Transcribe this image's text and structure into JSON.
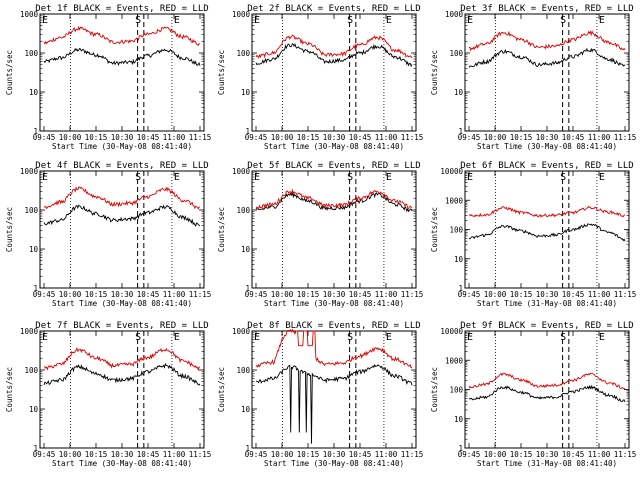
{
  "chart_data": [
    {
      "type": "line",
      "title": "Det 1f BLACK = Events, RED = LLD",
      "xlabel": "Start Time (30-May-08 08:41:40)",
      "ylabel": "Counts/sec",
      "ylim": [
        1,
        1000
      ],
      "y_log": true,
      "x_ticks": [
        "09:45",
        "10:00",
        "10:15",
        "10:30",
        "10:45",
        "11:00",
        "11:15"
      ],
      "y_ticks": [
        "1",
        "10",
        "100",
        "1000"
      ],
      "markers": {
        "E1": "E",
        "S": "S",
        "E2": "E"
      },
      "series": [
        {
          "name": "Events",
          "color": "#000000",
          "values": [
            60,
            75,
            120,
            90,
            55,
            58,
            85,
            120,
            75,
            50
          ]
        },
        {
          "name": "LLD",
          "color": "#e00000",
          "values": [
            180,
            250,
            420,
            300,
            190,
            200,
            300,
            420,
            260,
            170
          ]
        }
      ]
    },
    {
      "type": "line",
      "title": "Det 2f BLACK = Events, RED = LLD",
      "xlabel": "Start Time (30-May-08 08:41:40)",
      "ylabel": "Counts/sec",
      "ylim": [
        1,
        1000
      ],
      "y_log": true,
      "x_ticks": [
        "09:45",
        "10:00",
        "10:15",
        "10:30",
        "10:45",
        "11:00",
        "11:15"
      ],
      "y_ticks": [
        "1",
        "10",
        "100",
        "1000"
      ],
      "markers": {
        "E1": "E",
        "S": "S",
        "E2": "E"
      },
      "series": [
        {
          "name": "Events",
          "color": "#000000",
          "values": [
            55,
            70,
            160,
            110,
            60,
            65,
            100,
            150,
            80,
            50
          ]
        },
        {
          "name": "LLD",
          "color": "#e00000",
          "values": [
            80,
            100,
            260,
            170,
            90,
            95,
            160,
            250,
            120,
            80
          ]
        }
      ]
    },
    {
      "type": "line",
      "title": "Det 3f BLACK = Events, RED = LLD",
      "xlabel": "Start Time (30-May-08 08:41:40)",
      "ylabel": "Counts/sec",
      "ylim": [
        1,
        1000
      ],
      "y_log": true,
      "x_ticks": [
        "09:45",
        "10:00",
        "10:15",
        "10:30",
        "10:45",
        "11:00",
        "11:15"
      ],
      "y_ticks": [
        "1",
        "10",
        "100",
        "1000"
      ],
      "markers": {
        "E1": "E",
        "S": "S",
        "E2": "E"
      },
      "series": [
        {
          "name": "Events",
          "color": "#000000",
          "values": [
            45,
            60,
            110,
            80,
            50,
            55,
            80,
            120,
            70,
            45
          ]
        },
        {
          "name": "LLD",
          "color": "#e00000",
          "values": [
            130,
            170,
            330,
            220,
            140,
            150,
            220,
            330,
            190,
            120
          ]
        }
      ]
    },
    {
      "type": "line",
      "title": "Det 4f BLACK = Events, RED = LLD",
      "xlabel": "Start Time (30-May-08 08:41:40)",
      "ylabel": "Counts/sec",
      "ylim": [
        1,
        1000
      ],
      "y_log": true,
      "x_ticks": [
        "09:45",
        "10:00",
        "10:15",
        "10:30",
        "10:45",
        "11:00",
        "11:15"
      ],
      "y_ticks": [
        "1",
        "10",
        "100",
        "1000"
      ],
      "markers": {
        "E1": "E",
        "S": "S",
        "E2": "E"
      },
      "series": [
        {
          "name": "Events",
          "color": "#000000",
          "values": [
            45,
            55,
            120,
            80,
            55,
            60,
            85,
            120,
            65,
            40
          ]
        },
        {
          "name": "LLD",
          "color": "#e00000",
          "values": [
            120,
            160,
            350,
            220,
            140,
            150,
            220,
            340,
            180,
            110
          ]
        }
      ]
    },
    {
      "type": "line",
      "title": "Det 5f BLACK = Events, RED = LLD",
      "xlabel": "Start Time (30-May-08 08:41:40)",
      "ylabel": "Counts/sec",
      "ylim": [
        1,
        1000
      ],
      "y_log": true,
      "x_ticks": [
        "09:45",
        "10:00",
        "10:15",
        "10:30",
        "10:45",
        "11:00",
        "11:15"
      ],
      "y_ticks": [
        "1",
        "10",
        "100",
        "1000"
      ],
      "markers": {
        "E1": "E",
        "S": "S",
        "E2": "E"
      },
      "series": [
        {
          "name": "Events",
          "color": "#000000",
          "values": [
            100,
            120,
            250,
            170,
            110,
            115,
            170,
            250,
            140,
            95
          ]
        },
        {
          "name": "LLD",
          "color": "#e00000",
          "values": [
            120,
            140,
            300,
            200,
            130,
            135,
            200,
            300,
            170,
            115
          ]
        }
      ]
    },
    {
      "type": "line",
      "title": "Det 6f BLACK = Events, RED = LLD",
      "xlabel": "Start Time (31-May-08 08:41:40)",
      "ylabel": "Counts/sec",
      "ylim": [
        1,
        10000
      ],
      "y_log": true,
      "x_ticks": [
        "09:45",
        "10:00",
        "10:15",
        "10:30",
        "10:45",
        "11:00",
        "11:15"
      ],
      "y_ticks": [
        "1",
        "10",
        "100",
        "1000",
        "10000"
      ],
      "markers": {
        "E1": "E",
        "S": "S",
        "E2": "E"
      },
      "series": [
        {
          "name": "Events",
          "color": "#000000",
          "values": [
            50,
            65,
            130,
            90,
            60,
            65,
            100,
            150,
            80,
            45
          ]
        },
        {
          "name": "LLD",
          "color": "#e00000",
          "values": [
            300,
            320,
            550,
            380,
            300,
            310,
            380,
            560,
            400,
            300
          ]
        }
      ]
    },
    {
      "type": "line",
      "title": "Det 7f BLACK = Events, RED = LLD",
      "xlabel": "Start Time (30-May-08 08:41:40)",
      "ylabel": "Counts/sec",
      "ylim": [
        1,
        1000
      ],
      "y_log": true,
      "x_ticks": [
        "09:45",
        "10:00",
        "10:15",
        "10:30",
        "10:45",
        "11:00",
        "11:15"
      ],
      "y_ticks": [
        "1",
        "10",
        "100",
        "1000"
      ],
      "markers": {
        "E1": "E",
        "S": "S",
        "E2": "E"
      },
      "series": [
        {
          "name": "Events",
          "color": "#000000",
          "values": [
            45,
            55,
            120,
            80,
            55,
            60,
            90,
            130,
            70,
            45
          ]
        },
        {
          "name": "LLD",
          "color": "#e00000",
          "values": [
            110,
            140,
            330,
            200,
            130,
            140,
            210,
            340,
            170,
            110
          ]
        }
      ]
    },
    {
      "type": "line",
      "title": "Det 8f BLACK = Events, RED = LLD",
      "xlabel": "Start Time (30-May-08 08:41:40)",
      "ylabel": "Counts/sec",
      "ylim": [
        1,
        1000
      ],
      "y_log": true,
      "x_ticks": [
        "09:45",
        "10:00",
        "10:15",
        "10:30",
        "10:45",
        "11:00",
        "11:15"
      ],
      "y_ticks": [
        "1",
        "10",
        "100",
        "1000"
      ],
      "markers": {
        "E1": "E",
        "S": "S",
        "E2": "E"
      },
      "series": [
        {
          "name": "Events",
          "color": "#000000",
          "values": [
            50,
            60,
            120,
            80,
            55,
            60,
            90,
            130,
            70,
            45
          ]
        },
        {
          "name": "LLD",
          "color": "#e00000",
          "values": [
            130,
            160,
            1000,
            250,
            140,
            150,
            230,
            360,
            190,
            120
          ]
        }
      ]
    },
    {
      "type": "line",
      "title": "Det 9f BLACK = Events, RED = LLD",
      "xlabel": "Start Time (31-May-08 08:41:40)",
      "ylabel": "Counts/sec",
      "ylim": [
        1,
        10000
      ],
      "y_log": true,
      "x_ticks": [
        "09:45",
        "10:00",
        "10:15",
        "10:30",
        "10:45",
        "11:00",
        "11:15"
      ],
      "y_ticks": [
        "1",
        "10",
        "100",
        "1000",
        "10000"
      ],
      "markers": {
        "E1": "E",
        "S": "S",
        "E2": "E"
      },
      "series": [
        {
          "name": "Events",
          "color": "#000000",
          "values": [
            45,
            55,
            120,
            80,
            50,
            55,
            85,
            120,
            65,
            40
          ]
        },
        {
          "name": "LLD",
          "color": "#e00000",
          "values": [
            120,
            150,
            330,
            210,
            130,
            140,
            210,
            330,
            170,
            110
          ]
        }
      ]
    }
  ]
}
